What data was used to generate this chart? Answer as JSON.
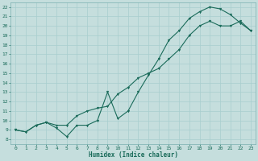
{
  "title": "",
  "xlabel": "Humidex (Indice chaleur)",
  "xlim": [
    -0.5,
    23.5
  ],
  "ylim": [
    7.5,
    22.5
  ],
  "xticks": [
    0,
    1,
    2,
    3,
    4,
    5,
    6,
    7,
    8,
    9,
    10,
    11,
    12,
    13,
    14,
    15,
    16,
    17,
    18,
    19,
    20,
    21,
    22,
    23
  ],
  "yticks": [
    8,
    9,
    10,
    11,
    12,
    13,
    14,
    15,
    16,
    17,
    18,
    19,
    20,
    21,
    22
  ],
  "bg_color": "#c5dedd",
  "grid_color": "#a8cece",
  "line_color": "#1a6b5a",
  "spine_color": "#7ab0b0",
  "curve1_x": [
    0,
    1,
    2,
    3,
    4,
    5,
    6,
    7,
    8,
    9,
    10,
    11,
    12,
    13,
    14,
    15,
    16,
    17,
    18,
    19,
    20,
    21,
    22,
    23
  ],
  "curve1_y": [
    9.0,
    8.8,
    9.5,
    9.8,
    9.2,
    8.3,
    9.5,
    9.5,
    10.0,
    13.0,
    10.2,
    11.0,
    13.0,
    14.8,
    16.5,
    18.5,
    19.5,
    20.8,
    21.5,
    22.0,
    21.8,
    21.2,
    20.3,
    19.5
  ],
  "curve2_x": [
    0,
    1,
    2,
    3,
    4,
    5,
    6,
    7,
    8,
    9,
    10,
    11,
    12,
    13,
    14,
    15,
    16,
    17,
    18,
    19,
    20,
    21,
    22,
    23
  ],
  "curve2_y": [
    9.0,
    8.8,
    9.5,
    9.8,
    9.5,
    9.5,
    10.5,
    11.0,
    11.3,
    11.5,
    12.8,
    13.5,
    14.5,
    15.0,
    15.5,
    16.5,
    17.5,
    19.0,
    20.0,
    20.5,
    20.0,
    20.0,
    20.5,
    19.5
  ],
  "xlabel_fontsize": 5.5,
  "tick_fontsize": 4.5,
  "marker_size": 2.0,
  "line_width": 0.8
}
